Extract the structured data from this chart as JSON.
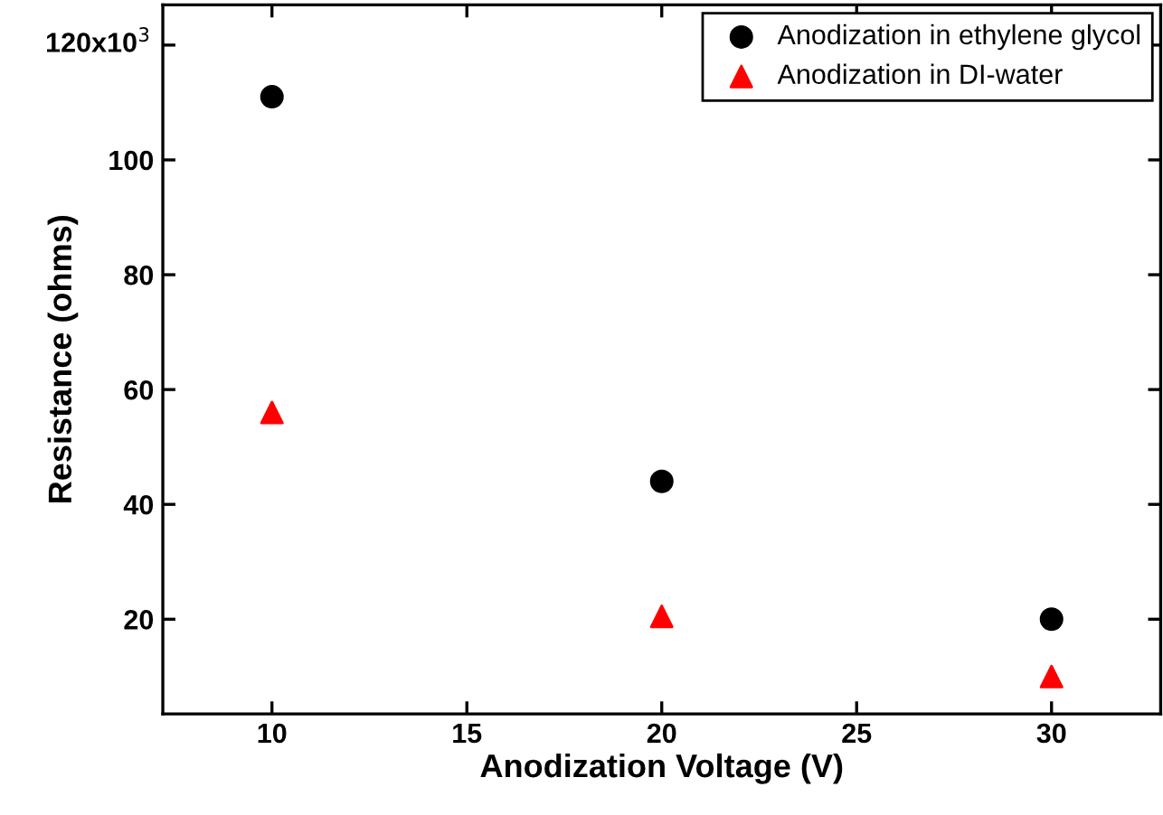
{
  "chart_data": {
    "type": "scatter",
    "xlabel": "Anodization Voltage (V)",
    "ylabel": "Resistance (ohms)",
    "x": [
      10,
      20,
      30
    ],
    "series": [
      {
        "name": "Anodization in ethylene glycol",
        "color": "#000000",
        "marker": "circle",
        "values": [
          111,
          44,
          20
        ]
      },
      {
        "name": "Anodization in DI-water",
        "color": "#ff0000",
        "marker": "triangle",
        "values": [
          56,
          20.5,
          10
        ]
      }
    ],
    "xlim": [
      7.2,
      32.8
    ],
    "xticks": [
      10,
      15,
      20,
      25,
      30
    ],
    "ylim": [
      3.5,
      127
    ],
    "yticks": [
      20,
      40,
      60,
      80,
      100,
      {
        "value": 120,
        "label": null
      }
    ],
    "annotations": [
      "120x10$^{3}$"
    ],
    "legend": "top right",
    "grid": false
  }
}
